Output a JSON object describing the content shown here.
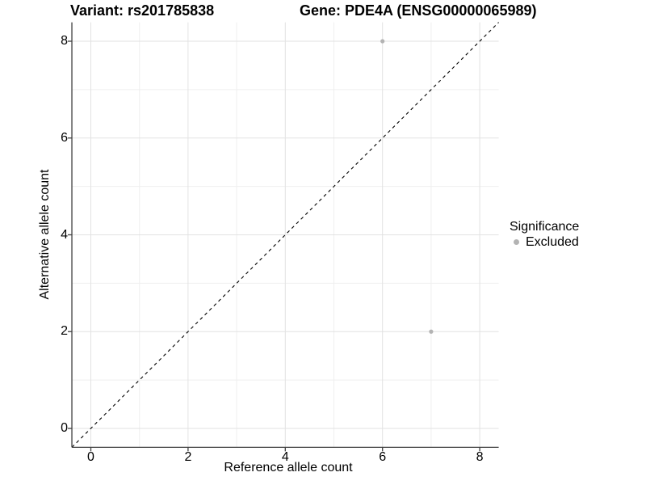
{
  "chart_data": {
    "type": "scatter",
    "title_left": "Variant: rs201785838",
    "title_right": "Gene: PDE4A (ENSG00000065989)",
    "xlabel": "Reference allele count",
    "ylabel": "Alternative allele count",
    "xlim": [
      -0.39,
      8.39
    ],
    "ylim": [
      -0.39,
      8.39
    ],
    "x_ticks": [
      0,
      2,
      4,
      6,
      8
    ],
    "y_ticks": [
      0,
      2,
      4,
      6,
      8
    ],
    "x_minor_ticks": [
      1,
      3,
      5,
      7
    ],
    "y_minor_ticks": [
      1,
      3,
      5,
      7
    ],
    "grid": true,
    "reference_line": {
      "slope": 1,
      "intercept": 0,
      "style": "dashed",
      "color": "#000000"
    },
    "series": [
      {
        "name": "Excluded",
        "color": "#b3b3b3",
        "points": [
          {
            "x": 6,
            "y": 8
          },
          {
            "x": 7,
            "y": 2
          }
        ]
      }
    ],
    "legend": {
      "title": "Significance",
      "position": "right",
      "items": [
        {
          "label": "Excluded",
          "color": "#b3b3b3"
        }
      ]
    },
    "colors": {
      "major_grid": "#e2e2e2",
      "minor_grid": "#efefef",
      "axis_line": "#404040",
      "text": "#000000",
      "background": "#ffffff"
    }
  }
}
